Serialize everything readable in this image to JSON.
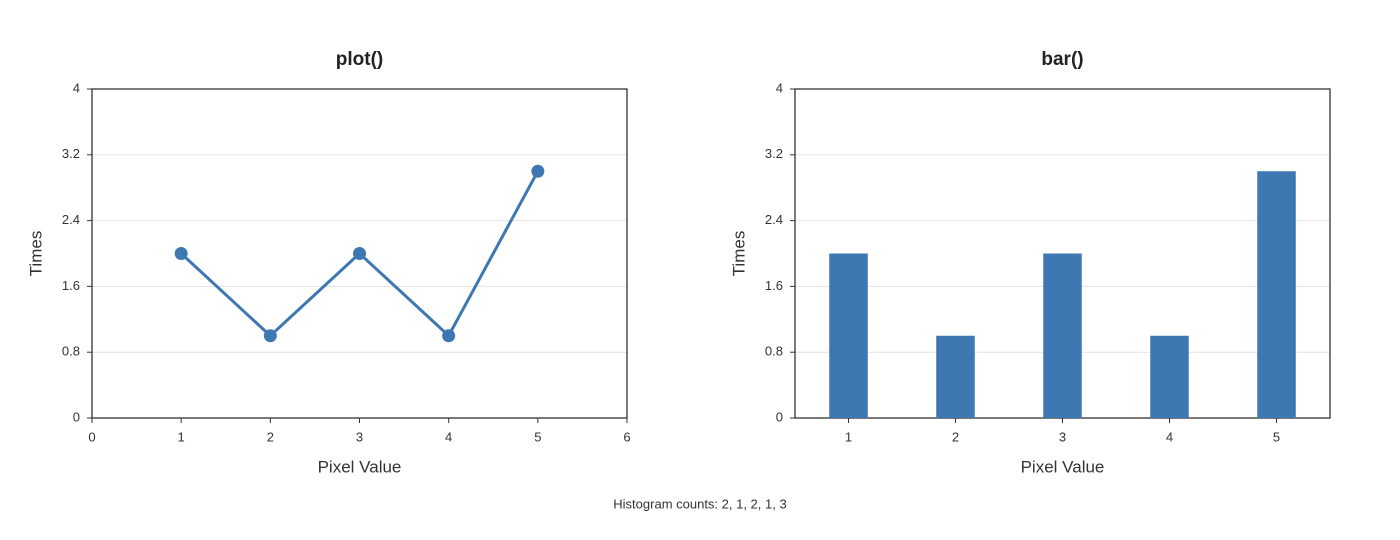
{
  "chart_data": [
    {
      "type": "line",
      "title": "plot()",
      "x_label": "Pixel Value",
      "y_label": "Times",
      "x": [
        1,
        2,
        3,
        4,
        5
      ],
      "values": [
        2,
        1,
        2,
        1,
        3
      ],
      "color": "#3e78b2",
      "xlim": [
        0,
        6
      ],
      "xticks": [
        0,
        1,
        2,
        3,
        4,
        5,
        6
      ],
      "ylim": [
        0,
        4
      ],
      "yticks": [
        0,
        0.8,
        1.6,
        2.4,
        3.2,
        4
      ],
      "grid": true
    },
    {
      "type": "bar",
      "title": "bar()",
      "x_label": "Pixel Value",
      "y_label": "Times",
      "categories": [
        "1",
        "2",
        "3",
        "4",
        "5"
      ],
      "values": [
        2,
        1,
        2,
        1,
        3
      ],
      "color": "#3e78b2",
      "ylim": [
        0,
        4
      ],
      "yticks": [
        0,
        0.8,
        1.6,
        2.4,
        3.2,
        4
      ],
      "grid": true
    }
  ],
  "caption": "Histogram counts: 2, 1, 2, 1, 3"
}
